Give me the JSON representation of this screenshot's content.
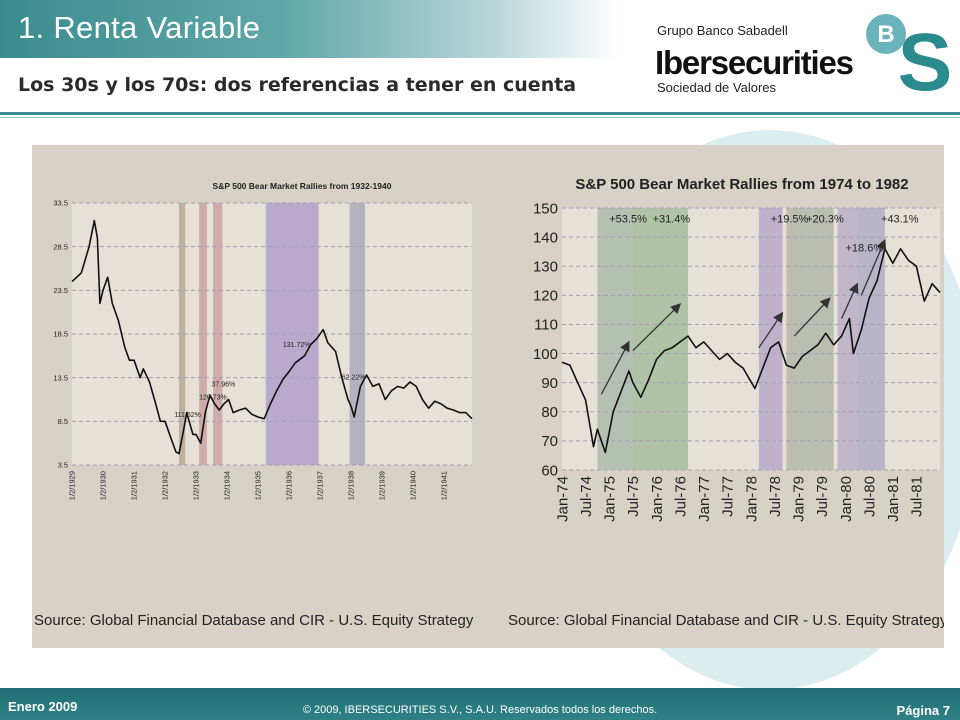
{
  "slide": {
    "title": "1. Renta Variable",
    "subtitle": "Los 30s y los 70s: dos referencias a tener en cuenta"
  },
  "brand": {
    "group": "Grupo Banco Sabadell",
    "name": "Ibersecurities",
    "tagline": "Sociedad de Valores",
    "logo_letters": [
      "B",
      "S"
    ],
    "colors": {
      "teal": "#3a8c8f",
      "logo_b": "#6bb3bb",
      "logo_s": "#2a8a8e"
    }
  },
  "footer": {
    "date": "Enero 2009",
    "copyright": "© 2009, IBERSECURITIES S.V., S.A.U. Reservados todos los derechos.",
    "page": "Página 7"
  },
  "chart_data": [
    {
      "type": "line",
      "title": "S&P 500 Bear Market Rallies from 1932-1940",
      "source": "Source: Global Financial Database and CIR - U.S. Equity Strategy",
      "y_ticks": [
        "33.5",
        "28.5",
        "23.5",
        "18.5",
        "13.5",
        "8.5",
        "3.5"
      ],
      "ylim": [
        3.5,
        33.5
      ],
      "x_ticks": [
        "1/2/1929",
        "1/2/1930",
        "1/2/1931",
        "1/2/1932",
        "1/2/1933",
        "1/2/1934",
        "1/2/1935",
        "1/2/1936",
        "1/2/1937",
        "1/2/1938",
        "1/2/1939",
        "1/2/1940",
        "1/2/1941"
      ],
      "xlim": [
        1929.0,
        1941.9
      ],
      "grid": true,
      "series": [
        {
          "x": [
            1929.0,
            1929.3,
            1929.55,
            1929.72,
            1929.82,
            1929.9,
            1930.0,
            1930.15,
            1930.3,
            1930.5,
            1930.7,
            1930.85,
            1931.0,
            1931.2,
            1931.3,
            1931.5,
            1931.7,
            1931.85,
            1932.0,
            1932.2,
            1932.35,
            1932.45,
            1932.6,
            1932.7,
            1932.9,
            1933.0,
            1933.15,
            1933.3,
            1933.45,
            1933.6,
            1933.75,
            1933.9,
            1934.05,
            1934.2,
            1934.4,
            1934.6,
            1934.8,
            1935.0,
            1935.2,
            1935.4,
            1935.6,
            1935.8,
            1936.0,
            1936.2,
            1936.5,
            1936.7,
            1936.9,
            1937.1,
            1937.25,
            1937.5,
            1937.7,
            1937.9,
            1938.0,
            1938.1,
            1938.3,
            1938.5,
            1938.7,
            1938.9,
            1939.1,
            1939.3,
            1939.5,
            1939.7,
            1939.9,
            1940.1,
            1940.3,
            1940.5,
            1940.7,
            1940.9,
            1941.1,
            1941.3,
            1941.5,
            1941.7,
            1941.9
          ],
          "y": [
            24.5,
            25.5,
            28.5,
            31.5,
            29.5,
            22.0,
            23.5,
            25.0,
            22.0,
            20.0,
            17.0,
            15.5,
            15.5,
            13.5,
            14.5,
            13.0,
            10.5,
            8.5,
            8.5,
            6.5,
            5.0,
            4.8,
            7.5,
            9.5,
            7.0,
            7.0,
            6.0,
            9.5,
            11.5,
            10.5,
            9.8,
            10.5,
            11.0,
            9.5,
            9.8,
            10.0,
            9.3,
            9.0,
            8.8,
            10.5,
            12.0,
            13.3,
            14.2,
            15.2,
            16.0,
            17.3,
            18.0,
            19.0,
            17.5,
            16.5,
            13.5,
            11.0,
            10.2,
            9.0,
            12.5,
            13.8,
            12.5,
            12.8,
            11.0,
            12.0,
            12.5,
            12.3,
            13.0,
            12.5,
            11.0,
            10.0,
            10.8,
            10.5,
            10.0,
            9.8,
            9.5,
            9.5,
            8.8
          ]
        }
      ],
      "shaded_ranges": [
        {
          "from": 1932.45,
          "to": 1932.65,
          "color": "#b0a08c"
        },
        {
          "from": 1933.1,
          "to": 1933.35,
          "color": "#c49a9a"
        },
        {
          "from": 1933.55,
          "to": 1933.85,
          "color": "#c69aa0"
        },
        {
          "from": 1935.25,
          "to": 1936.95,
          "color": "#a996c8"
        },
        {
          "from": 1937.95,
          "to": 1938.45,
          "color": "#a4a1b8"
        }
      ],
      "annotations": [
        {
          "text": "111.62%",
          "x": 1932.3,
          "y": 9.0
        },
        {
          "text": "120.73%",
          "x": 1933.1,
          "y": 11.0
        },
        {
          "text": "37.96%",
          "x": 1933.5,
          "y": 12.5
        },
        {
          "text": "131.72%",
          "x": 1935.8,
          "y": 17.0
        },
        {
          "text": "62.22%",
          "x": 1937.7,
          "y": 13.3
        }
      ]
    },
    {
      "type": "line",
      "title": "S&P 500 Bear Market Rallies from 1974 to 1982",
      "source": "Source: Global Financial Database and CIR - U.S. Equity Strategy",
      "y_ticks": [
        "150",
        "140",
        "130",
        "120",
        "110",
        "100",
        "90",
        "80",
        "70",
        "60"
      ],
      "ylim": [
        60,
        150
      ],
      "x_ticks": [
        "Jan-74",
        "Jul-74",
        "Jan-75",
        "Jul-75",
        "Jan-76",
        "Jul-76",
        "Jan-77",
        "Jul-77",
        "Jan-78",
        "Jul-78",
        "Jan-79",
        "Jul-79",
        "Jan-80",
        "Jul-80",
        "Jan-81",
        "Jul-81"
      ],
      "xlim": [
        "1974-01",
        "1982-01"
      ],
      "grid": true,
      "series": [
        {
          "x": [
            "1974-01",
            "1974-03",
            "1974-05",
            "1974-07",
            "1974-09",
            "1974-10",
            "1974-12",
            "1975-02",
            "1975-04",
            "1975-06",
            "1975-07",
            "1975-09",
            "1975-11",
            "1976-01",
            "1976-03",
            "1976-05",
            "1976-07",
            "1976-09",
            "1976-11",
            "1977-01",
            "1977-03",
            "1977-05",
            "1977-07",
            "1977-09",
            "1977-11",
            "1978-02",
            "1978-04",
            "1978-06",
            "1978-08",
            "1978-10",
            "1978-12",
            "1979-02",
            "1979-04",
            "1979-06",
            "1979-08",
            "1979-10",
            "1979-12",
            "1980-02",
            "1980-03",
            "1980-05",
            "1980-07",
            "1980-09",
            "1980-11",
            "1981-01",
            "1981-03",
            "1981-05",
            "1981-07",
            "1981-09",
            "1981-11",
            "1982-01"
          ],
          "y": [
            97,
            96,
            90,
            84,
            68,
            74,
            66,
            80,
            87,
            94,
            90,
            85,
            91,
            98,
            101,
            102,
            104,
            106,
            102,
            104,
            101,
            98,
            100,
            97,
            95,
            88,
            95,
            102,
            104,
            96,
            95,
            99,
            101,
            103,
            107,
            103,
            106,
            112,
            100,
            108,
            119,
            125,
            136,
            131,
            136,
            132,
            130,
            118,
            124,
            121
          ]
        }
      ],
      "shaded_ranges": [
        {
          "from": "1974-10",
          "to": "1975-07",
          "color": "#a2b4a6"
        },
        {
          "from": "1975-07",
          "to": "1976-09",
          "color": "#9fb896"
        },
        {
          "from": "1978-03",
          "to": "1978-09",
          "color": "#b0a0c4"
        },
        {
          "from": "1978-10",
          "to": "1979-10",
          "color": "#a9b2a4"
        },
        {
          "from": "1979-11",
          "to": "1980-04",
          "color": "#b6a8c4"
        },
        {
          "from": "1980-04",
          "to": "1980-11",
          "color": "#a8a6c4"
        }
      ],
      "annotations": [
        {
          "text": "+53.5%",
          "x": "1975-01",
          "y": 145
        },
        {
          "text": "+31.4%",
          "x": "1975-12",
          "y": 145
        },
        {
          "text": "+19.5%",
          "x": "1978-06",
          "y": 145
        },
        {
          "text": "+20.3%",
          "x": "1979-03",
          "y": 145
        },
        {
          "text": "+18.6%",
          "x": "1980-01",
          "y": 135
        },
        {
          "text": "+43.1%",
          "x": "1980-10",
          "y": 145
        }
      ],
      "arrows": [
        {
          "from": [
            "1974-11",
            86
          ],
          "to": [
            "1975-06",
            104
          ]
        },
        {
          "from": [
            "1975-07",
            101
          ],
          "to": [
            "1976-07",
            117
          ]
        },
        {
          "from": [
            "1978-03",
            102
          ],
          "to": [
            "1978-09",
            114
          ]
        },
        {
          "from": [
            "1978-12",
            106
          ],
          "to": [
            "1979-09",
            119
          ]
        },
        {
          "from": [
            "1979-12",
            112
          ],
          "to": [
            "1980-04",
            124
          ]
        },
        {
          "from": [
            "1980-05",
            120
          ],
          "to": [
            "1980-11",
            139
          ]
        }
      ]
    }
  ]
}
